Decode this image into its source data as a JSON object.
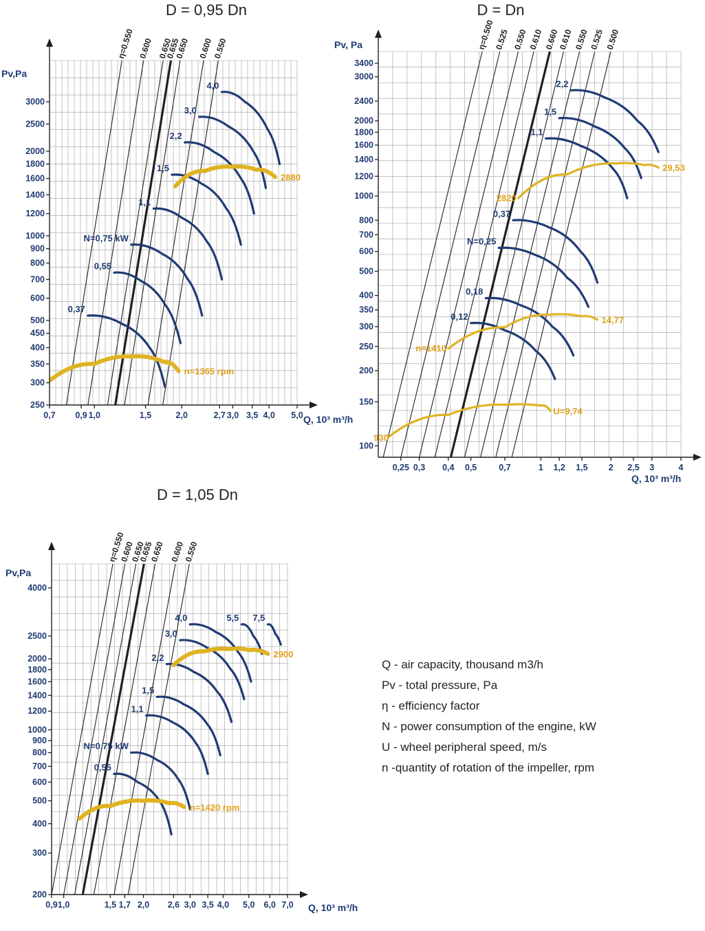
{
  "colors": {
    "grid": "#9c9c9c",
    "power": "#1f3b73",
    "speed": "#e0b323",
    "speed_text": "#e0a21b",
    "eta": "#231f20",
    "axis": "#231f20"
  },
  "legend": [
    "Q - air capacity, thousand m3/h",
    "Pv - total pressure, Pa",
    "η - efficiency factor",
    "N - power consumption of the engine, kW",
    "U - wheel peripheral speed, m/s",
    "n -quantity of rotation of the impeller, rpm"
  ],
  "chart_data": [
    {
      "type": "line",
      "title": "D = 0,95 Dn",
      "ylabel": "Pv,Pa",
      "xlabel": "Q, 10³ m³/h",
      "xscale": "log",
      "yscale": "log",
      "xlim": [
        0.7,
        5.0
      ],
      "ylim": [
        250,
        3000
      ],
      "grid": true,
      "x_ticks": [
        {
          "v": 0.7,
          "t": "0,7"
        },
        {
          "v": 0.9,
          "t": "0,9"
        },
        {
          "v": 1.0,
          "t": "1,0"
        },
        {
          "v": 1.5,
          "t": "1,5"
        },
        {
          "v": 2.0,
          "t": "2,0"
        },
        {
          "v": 2.7,
          "t": "2,7"
        },
        {
          "v": 3.0,
          "t": "3,0"
        },
        {
          "v": 3.5,
          "t": "3,5"
        },
        {
          "v": 4.0,
          "t": "4,0"
        },
        {
          "v": 5.0,
          "t": "5,0"
        }
      ],
      "y_ticks": [
        {
          "v": 250,
          "t": "250"
        },
        {
          "v": 300,
          "t": "300"
        },
        {
          "v": 350,
          "t": "350"
        },
        {
          "v": 400,
          "t": "400"
        },
        {
          "v": 450,
          "t": "450"
        },
        {
          "v": 500,
          "t": "500"
        },
        {
          "v": 600,
          "t": "600"
        },
        {
          "v": 700,
          "t": "700"
        },
        {
          "v": 800,
          "t": "800"
        },
        {
          "v": 900,
          "t": "900"
        },
        {
          "v": 1000,
          "t": "1000"
        },
        {
          "v": 1200,
          "t": "1200"
        },
        {
          "v": 1400,
          "t": "1400"
        },
        {
          "v": 1600,
          "t": "1600"
        },
        {
          "v": 1800,
          "t": "1800"
        },
        {
          "v": 2000,
          "t": "2000"
        },
        {
          "v": 2500,
          "t": "2500"
        },
        {
          "v": 3000,
          "t": "3000"
        }
      ],
      "eta_lines": [
        {
          "label": "η=0.550",
          "x": 0.8,
          "bold": false
        },
        {
          "label": "0.600",
          "x": 0.95,
          "bold": false
        },
        {
          "label": "0.650",
          "x": 1.11,
          "bold": false
        },
        {
          "label": "0.655",
          "x": 1.18,
          "bold": true
        },
        {
          "label": "0.650",
          "x": 1.27,
          "bold": false
        },
        {
          "label": "0.600",
          "x": 1.53,
          "bold": false
        },
        {
          "label": "0.550",
          "x": 1.72,
          "bold": false
        }
      ],
      "power_curves": [
        {
          "label": "0,37",
          "x": [
            0.95,
            1.25,
            1.55,
            1.75
          ],
          "y": [
            520,
            485,
            400,
            290
          ]
        },
        {
          "label": "0,55",
          "x": [
            1.17,
            1.45,
            1.75,
            1.98
          ],
          "y": [
            740,
            690,
            570,
            415
          ]
        },
        {
          "label": "N=0,75 kW",
          "x": [
            1.34,
            1.72,
            2.1,
            2.35
          ],
          "y": [
            930,
            860,
            700,
            520
          ]
        },
        {
          "label": "1,1",
          "x": [
            1.6,
            2.0,
            2.45,
            2.75
          ],
          "y": [
            1250,
            1160,
            950,
            700
          ]
        },
        {
          "label": "1,5",
          "x": [
            1.85,
            2.35,
            2.85,
            3.2
          ],
          "y": [
            1650,
            1530,
            1250,
            930
          ]
        },
        {
          "label": "2,2",
          "x": [
            2.05,
            2.6,
            3.2,
            3.55
          ],
          "y": [
            2150,
            1980,
            1600,
            1200
          ]
        },
        {
          "label": "3,0",
          "x": [
            2.3,
            2.9,
            3.55,
            3.9
          ],
          "y": [
            2650,
            2450,
            1980,
            1480
          ]
        },
        {
          "label": "4,0",
          "x": [
            2.75,
            3.3,
            3.95,
            4.35
          ],
          "y": [
            3250,
            3000,
            2400,
            1800
          ]
        }
      ],
      "speed_curves": [
        {
          "label": "n=1365 rpm",
          "x": [
            0.7,
            1.0,
            1.35,
            1.75,
            1.95
          ],
          "y": [
            305,
            350,
            372,
            355,
            330
          ]
        },
        {
          "label": "2880",
          "x": [
            1.9,
            2.4,
            3.0,
            3.6,
            4.2
          ],
          "y": [
            1500,
            1700,
            1760,
            1720,
            1620
          ]
        }
      ]
    },
    {
      "type": "line",
      "title": "D = Dn",
      "ylabel": "Pv, Pa",
      "xlabel": "Q, 10³ m³/h",
      "xscale": "log",
      "yscale": "log",
      "xlim": [
        0.2,
        4
      ],
      "ylim": [
        90,
        3400
      ],
      "grid": true,
      "x_ticks": [
        {
          "v": 0.25,
          "t": "0,25"
        },
        {
          "v": 0.3,
          "t": "0,3"
        },
        {
          "v": 0.4,
          "t": "0,4"
        },
        {
          "v": 0.5,
          "t": "0,5"
        },
        {
          "v": 0.7,
          "t": "0,7"
        },
        {
          "v": 1,
          "t": "1"
        },
        {
          "v": 1.2,
          "t": "1,2"
        },
        {
          "v": 1.5,
          "t": "1,5"
        },
        {
          "v": 2,
          "t": "2"
        },
        {
          "v": 2.5,
          "t": "2,5"
        },
        {
          "v": 3,
          "t": "3"
        },
        {
          "v": 4,
          "t": "4"
        }
      ],
      "y_ticks": [
        {
          "v": 100,
          "t": "100"
        },
        {
          "v": 150,
          "t": "150"
        },
        {
          "v": 200,
          "t": "200"
        },
        {
          "v": 250,
          "t": "250"
        },
        {
          "v": 300,
          "t": "300"
        },
        {
          "v": 350,
          "t": "350"
        },
        {
          "v": 400,
          "t": "400"
        },
        {
          "v": 500,
          "t": "500"
        },
        {
          "v": 600,
          "t": "600"
        },
        {
          "v": 700,
          "t": "700"
        },
        {
          "v": 800,
          "t": "800"
        },
        {
          "v": 1000,
          "t": "1000"
        },
        {
          "v": 1200,
          "t": "1200"
        },
        {
          "v": 1400,
          "t": "1400"
        },
        {
          "v": 1600,
          "t": "1600"
        },
        {
          "v": 1800,
          "t": "1800"
        },
        {
          "v": 2000,
          "t": "2000"
        },
        {
          "v": 2400,
          "t": "2400"
        },
        {
          "v": 3000,
          "t": "3000"
        },
        {
          "v": 3400,
          "t": "3400"
        }
      ],
      "eta_lines": [
        {
          "label": "η=0.500",
          "x": 0.21,
          "bold": false
        },
        {
          "label": "0.525",
          "x": 0.25,
          "bold": false
        },
        {
          "label": "0.550",
          "x": 0.3,
          "bold": false
        },
        {
          "label": "0.610",
          "x": 0.35,
          "bold": false
        },
        {
          "label": "0.660",
          "x": 0.41,
          "bold": true
        },
        {
          "label": "0.610",
          "x": 0.47,
          "bold": false
        },
        {
          "label": "0.550",
          "x": 0.55,
          "bold": false
        },
        {
          "label": "0.525",
          "x": 0.64,
          "bold": false
        },
        {
          "label": "0.500",
          "x": 0.75,
          "bold": false
        }
      ],
      "power_curves": [
        {
          "label": "0,12",
          "x": [
            0.5,
            0.7,
            0.95,
            1.15
          ],
          "y": [
            310,
            290,
            240,
            185
          ]
        },
        {
          "label": "0,18",
          "x": [
            0.58,
            0.82,
            1.12,
            1.38
          ],
          "y": [
            390,
            365,
            300,
            230
          ]
        },
        {
          "label": "N=0,25",
          "x": [
            0.66,
            0.95,
            1.3,
            1.6
          ],
          "y": [
            620,
            580,
            470,
            360
          ]
        },
        {
          "label": "0,37",
          "x": [
            0.76,
            1.1,
            1.48,
            1.75
          ],
          "y": [
            800,
            745,
            600,
            450
          ]
        },
        {
          "label": "1,1",
          "x": [
            1.05,
            1.5,
            2.05,
            2.35
          ],
          "y": [
            1700,
            1580,
            1280,
            980
          ]
        },
        {
          "label": "1,5",
          "x": [
            1.2,
            1.7,
            2.3,
            2.7
          ],
          "y": [
            2050,
            1900,
            1550,
            1180
          ]
        },
        {
          "label": "2,2",
          "x": [
            1.35,
            1.9,
            2.6,
            3.2
          ],
          "y": [
            2650,
            2470,
            2000,
            1500
          ]
        }
      ],
      "speed_curves": [
        {
          "label": "U=9,74",
          "x": [
            0.22,
            0.4,
            0.7,
            1.0,
            1.1
          ],
          "y": [
            108,
            133,
            146,
            145,
            138
          ]
        },
        {
          "label": "n=1410",
          "x": [
            0.4,
            0.7,
            1.1,
            1.5,
            1.75
          ],
          "y": [
            245,
            298,
            335,
            330,
            320
          ]
        },
        {
          "label": "2820",
          "x": [
            0.8,
            1.3,
            2.1,
            2.8,
            3.2
          ],
          "y": [
            980,
            1220,
            1350,
            1330,
            1300
          ]
        }
      ],
      "speed_labels": [
        {
          "t": "930",
          "anchor": "start"
        },
        {
          "t": "14,77",
          "anchor": "end"
        },
        {
          "t": "29,53",
          "anchor": "end"
        }
      ]
    },
    {
      "type": "line",
      "title": "D = 1,05 Dn",
      "ylabel": "Pv,Pa",
      "xlabel": "Q, 10³ m³/h",
      "xscale": "log",
      "yscale": "log",
      "xlim": [
        0.9,
        7.0
      ],
      "ylim": [
        200,
        4000
      ],
      "grid": true,
      "x_ticks": [
        {
          "v": 0.9,
          "t": "0,9"
        },
        {
          "v": 1.0,
          "t": "1,0"
        },
        {
          "v": 1.5,
          "t": "1,5"
        },
        {
          "v": 1.7,
          "t": "1,7"
        },
        {
          "v": 2.0,
          "t": "2,0"
        },
        {
          "v": 2.6,
          "t": "2,6"
        },
        {
          "v": 3.0,
          "t": "3,0"
        },
        {
          "v": 3.5,
          "t": "3,5"
        },
        {
          "v": 4.0,
          "t": "4,0"
        },
        {
          "v": 5.0,
          "t": "5,0"
        },
        {
          "v": 6.0,
          "t": "6,0"
        },
        {
          "v": 7.0,
          "t": "7,0"
        }
      ],
      "y_ticks": [
        {
          "v": 200,
          "t": "200"
        },
        {
          "v": 300,
          "t": "300"
        },
        {
          "v": 400,
          "t": "400"
        },
        {
          "v": 500,
          "t": "500"
        },
        {
          "v": 600,
          "t": "600"
        },
        {
          "v": 700,
          "t": "700"
        },
        {
          "v": 800,
          "t": "800"
        },
        {
          "v": 900,
          "t": "900"
        },
        {
          "v": 1000,
          "t": "1000"
        },
        {
          "v": 1200,
          "t": "1200"
        },
        {
          "v": 1400,
          "t": "1400"
        },
        {
          "v": 1600,
          "t": "1600"
        },
        {
          "v": 1800,
          "t": "1800"
        },
        {
          "v": 2000,
          "t": "2000"
        },
        {
          "v": 2500,
          "t": "2500"
        },
        {
          "v": 4000,
          "t": "4000"
        }
      ],
      "eta_lines": [
        {
          "label": "η=0.550",
          "x": 0.9,
          "bold": false
        },
        {
          "label": "0.600",
          "x": 1.0,
          "bold": false
        },
        {
          "label": "0.650",
          "x": 1.1,
          "bold": false
        },
        {
          "label": "0.655",
          "x": 1.18,
          "bold": true
        },
        {
          "label": "0.650",
          "x": 1.3,
          "bold": false
        },
        {
          "label": "0.600",
          "x": 1.55,
          "bold": false
        },
        {
          "label": "0.550",
          "x": 1.75,
          "bold": false
        }
      ],
      "power_curves": [
        {
          "label": "0,55",
          "x": [
            1.55,
            1.9,
            2.3,
            2.55
          ],
          "y": [
            650,
            600,
            500,
            360
          ]
        },
        {
          "label": "N=0,75 kW",
          "x": [
            1.8,
            2.25,
            2.7,
            3.0
          ],
          "y": [
            800,
            745,
            620,
            460
          ]
        },
        {
          "label": "1,1",
          "x": [
            2.05,
            2.6,
            3.15,
            3.5
          ],
          "y": [
            1150,
            1070,
            880,
            650
          ]
        },
        {
          "label": "1,5",
          "x": [
            2.25,
            2.85,
            3.5,
            3.9
          ],
          "y": [
            1380,
            1280,
            1050,
            780
          ]
        },
        {
          "label": "2,2",
          "x": [
            2.45,
            3.1,
            3.8,
            4.3
          ],
          "y": [
            1900,
            1760,
            1450,
            1080
          ]
        },
        {
          "label": "3,0",
          "x": [
            2.75,
            3.5,
            4.25,
            4.8
          ],
          "y": [
            2400,
            2220,
            1820,
            1350
          ]
        },
        {
          "label": "4,0",
          "x": [
            3.0,
            3.75,
            4.55,
            5.1
          ],
          "y": [
            2800,
            2600,
            2140,
            1600
          ]
        },
        {
          "label": "5,5",
          "x": [
            4.7,
            5.2,
            5.6
          ],
          "y": [
            2800,
            2500,
            2100
          ]
        },
        {
          "label": "7,5",
          "x": [
            5.9,
            6.3,
            6.6
          ],
          "y": [
            2800,
            2550,
            2300
          ]
        }
      ],
      "speed_curves": [
        {
          "label": "n=1420 rpm",
          "x": [
            1.15,
            1.5,
            2.0,
            2.5,
            2.85
          ],
          "y": [
            420,
            475,
            500,
            488,
            470
          ]
        },
        {
          "label": "2900",
          "x": [
            2.6,
            3.4,
            4.2,
            5.0,
            5.9
          ],
          "y": [
            1880,
            2150,
            2200,
            2180,
            2100
          ]
        }
      ]
    }
  ]
}
